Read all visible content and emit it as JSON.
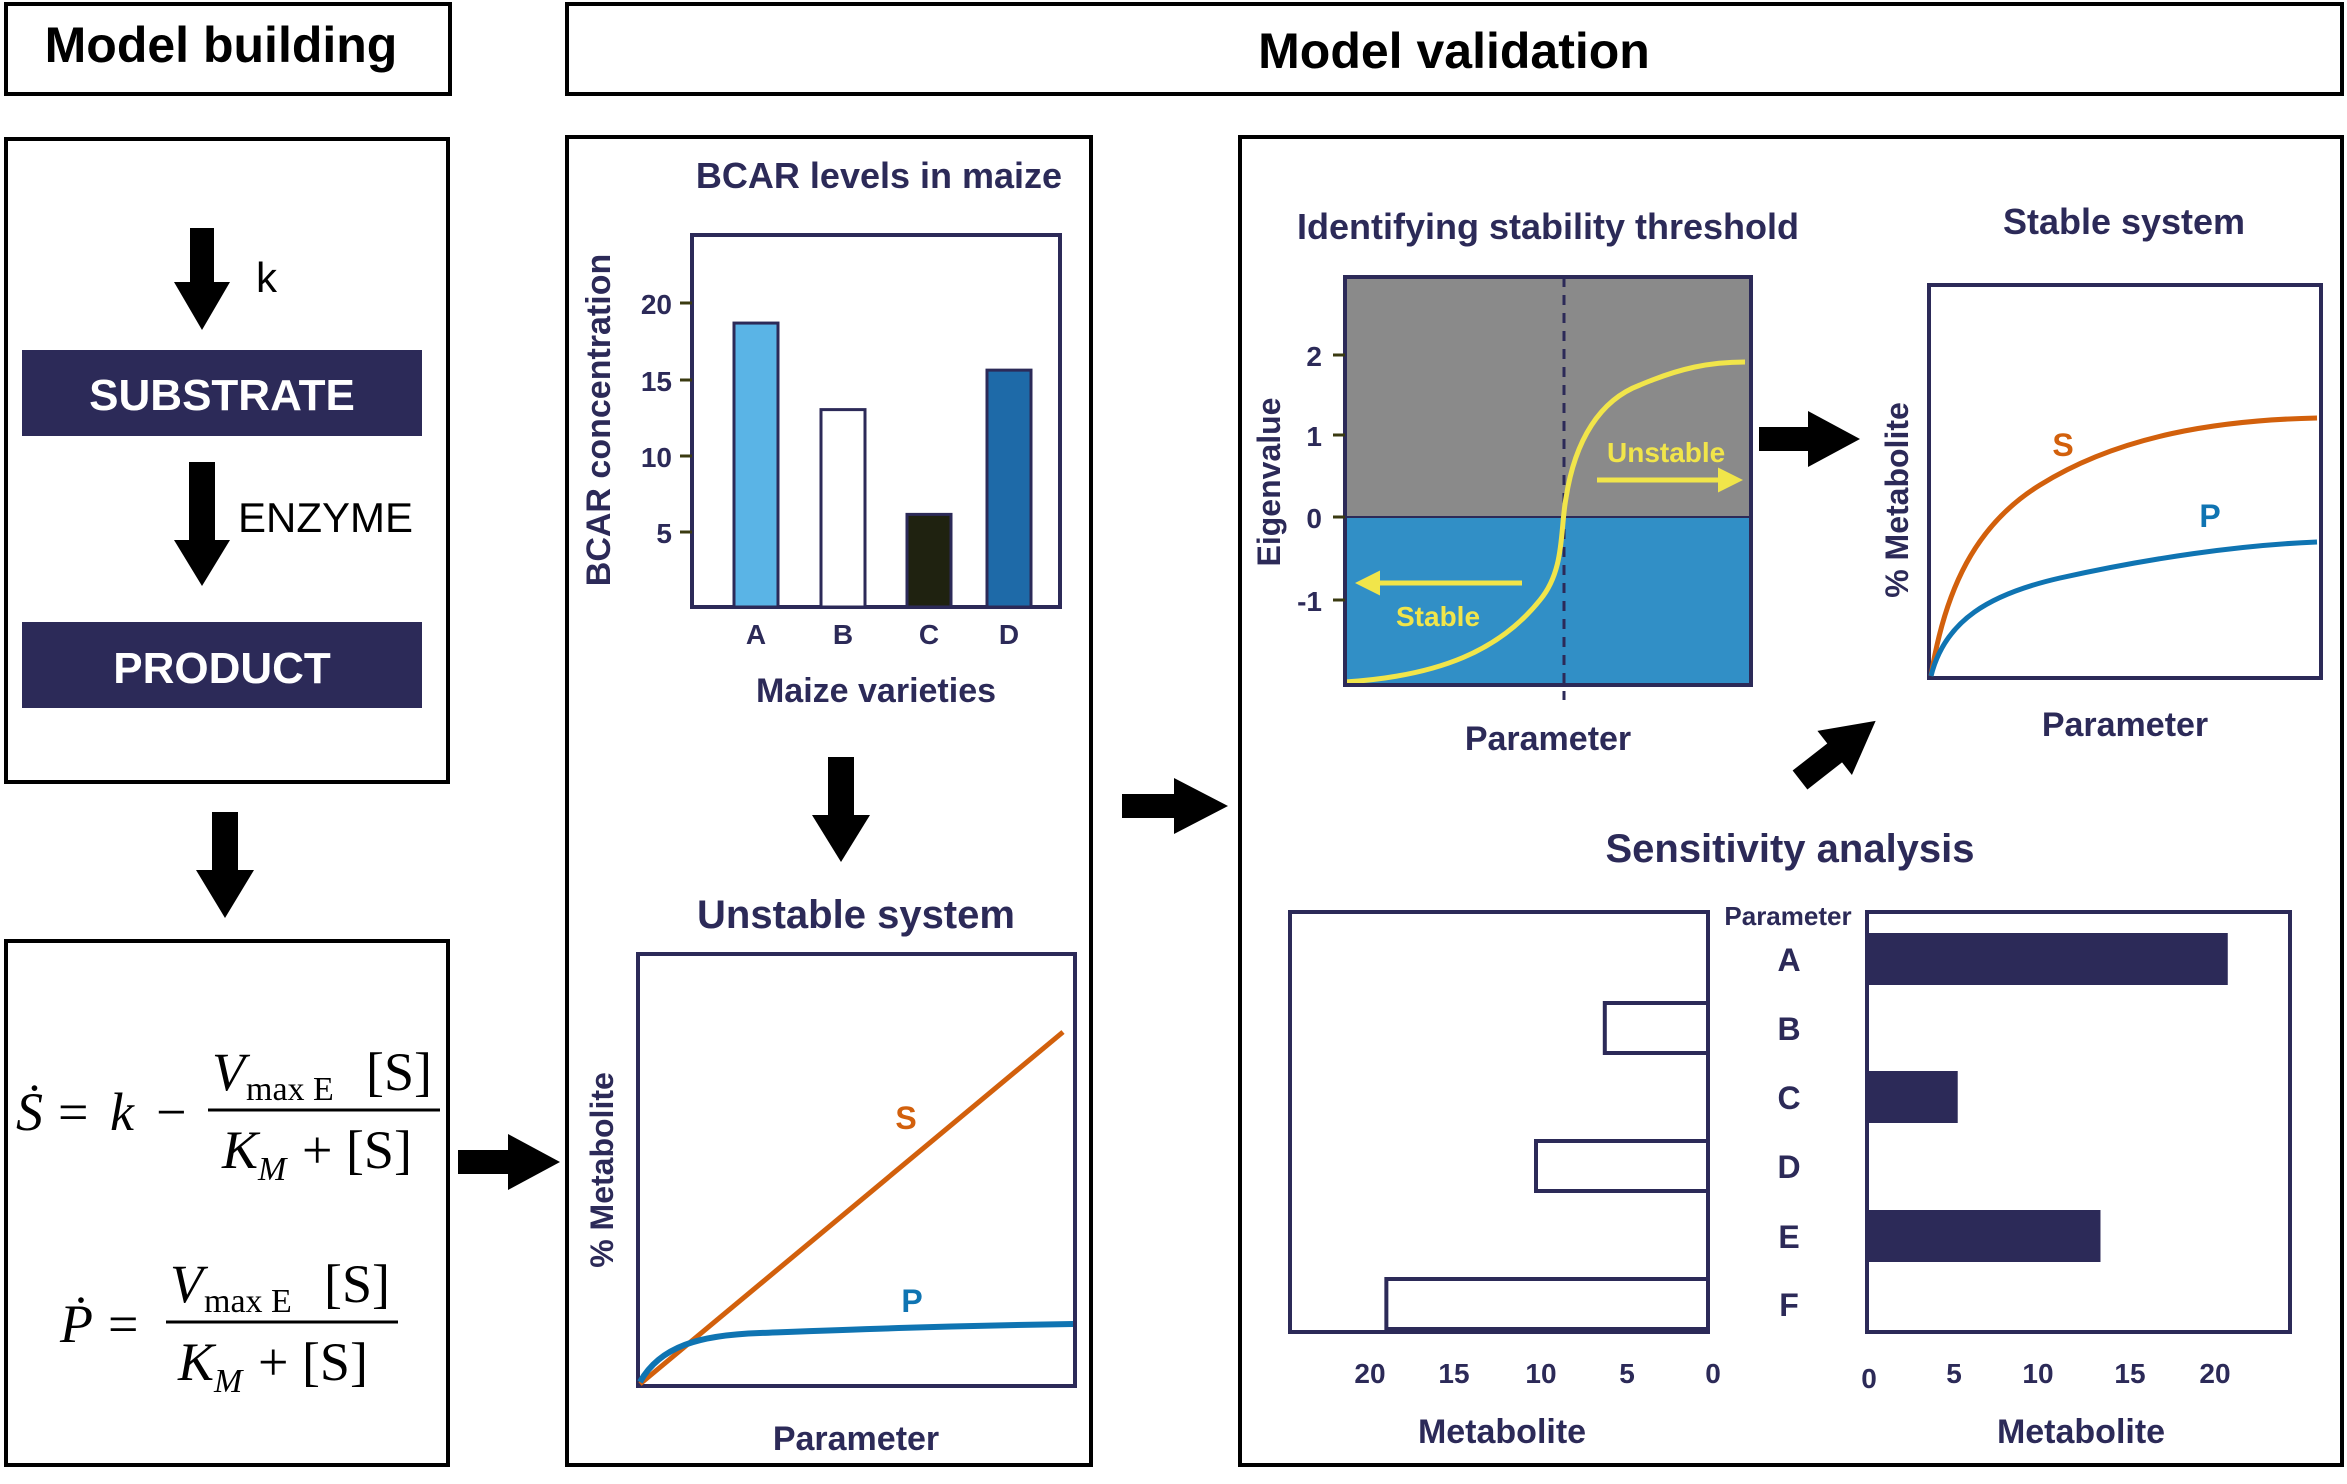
{
  "headers": {
    "model_building": "Model building",
    "model_validation": "Model validation"
  },
  "colors": {
    "navy": "#2c2a58",
    "orange": "#d2600c",
    "blue": "#0f74b2",
    "yellow": "#f1e54a",
    "gray": "#8a8a8a",
    "stable_blue": "#318fc6",
    "bar_light_blue": "#5ab4e6",
    "bar_dark": "#1f2210",
    "bar_dark_blue": "#1e6aa8"
  },
  "reaction": {
    "k_label": "k",
    "substrate": "SUBSTRATE",
    "enzyme_label": "ENZYME",
    "product": "PRODUCT"
  },
  "equations": {
    "s_dot": "Ṡ",
    "p_dot": "Ṗ",
    "equals": "=",
    "k": "k",
    "minus": "−",
    "numerator": "V",
    "numerator_sub": "max E",
    "numerator_tail": "[S]",
    "denominator": "K",
    "denominator_sub": "M",
    "denominator_tail": "+ [S]"
  },
  "bcar": {
    "title": "BCAR levels in maize",
    "ylabel": "BCAR concentration",
    "xlabel": "Maize varieties",
    "yticks": [
      "20",
      "15",
      "10",
      "5"
    ]
  },
  "unstable": {
    "title": "Unstable system",
    "ylabel": "% Metabolite",
    "xlabel": "Parameter",
    "s_label": "S",
    "p_label": "P"
  },
  "stability": {
    "title": "Identifying stability threshold",
    "ylabel": "Eigenvalue",
    "xlabel": "Parameter",
    "unstable_label": "Unstable",
    "stable_label": "Stable",
    "yticks": [
      "2",
      "1",
      "0",
      "-1"
    ]
  },
  "stable": {
    "title": "Stable system",
    "ylabel": "% Metabolite",
    "xlabel": "Parameter",
    "s_label": "S",
    "p_label": "P"
  },
  "sensitivity": {
    "title": "Sensitivity analysis",
    "param_header": "Parameter",
    "left_xlabel": "Metabolite",
    "right_xlabel": "Metabolite",
    "left_ticks": [
      "20",
      "15",
      "10",
      "5",
      "0"
    ],
    "right_ticks": [
      "0",
      "5",
      "10",
      "15",
      "20"
    ]
  },
  "chart_data": [
    {
      "type": "bar",
      "title": "BCAR levels in maize",
      "xlabel": "Maize varieties",
      "ylabel": "BCAR concentration",
      "categories": [
        "A",
        "B",
        "C",
        "D"
      ],
      "values": [
        18.7,
        13.0,
        6.1,
        15.6
      ],
      "ylim": [
        0,
        24.5
      ]
    },
    {
      "type": "line",
      "title": "Identifying stability threshold",
      "xlabel": "Parameter",
      "ylabel": "Eigenvalue",
      "ylim": [
        -2,
        2.5
      ],
      "series": [
        {
          "x": [
            0,
            0.2,
            0.4,
            0.5,
            0.54,
            0.58,
            0.7,
            0.85,
            1.0
          ],
          "y": [
            -1.95,
            -1.8,
            -1.3,
            -0.7,
            0,
            0.8,
            1.45,
            1.75,
            1.85
          ]
        }
      ]
    },
    {
      "type": "line",
      "title": "Unstable system",
      "xlabel": "Parameter",
      "ylabel": "% Metabolite",
      "series": [
        {
          "name": "S",
          "x": [
            0,
            1
          ],
          "y": [
            0,
            0.86
          ]
        },
        {
          "name": "P",
          "x": [
            0,
            0.05,
            0.2,
            0.4,
            0.6,
            0.8,
            1.0
          ],
          "y": [
            0,
            0.05,
            0.1,
            0.125,
            0.138,
            0.144,
            0.145
          ]
        }
      ]
    },
    {
      "type": "line",
      "title": "Stable system",
      "xlabel": "Parameter",
      "ylabel": "% Metabolite",
      "series": [
        {
          "name": "S",
          "x": [
            0,
            0.05,
            0.2,
            0.4,
            0.6,
            0.8,
            1.0
          ],
          "y": [
            0,
            0.3,
            0.55,
            0.7,
            0.77,
            0.8,
            0.81
          ]
        },
        {
          "name": "P",
          "x": [
            0,
            0.05,
            0.2,
            0.4,
            0.6,
            0.8,
            1.0
          ],
          "y": [
            0,
            0.12,
            0.25,
            0.32,
            0.35,
            0.37,
            0.38
          ]
        }
      ]
    },
    {
      "type": "bar",
      "title": "Sensitivity analysis",
      "orientation": "horizontal",
      "categories": [
        "A",
        "B",
        "C",
        "D",
        "E",
        "F"
      ],
      "series": [
        {
          "values": [
            0,
            6,
            0,
            10,
            0,
            18.7
          ]
        },
        {
          "values": [
            20.8,
            0,
            5.1,
            0,
            13.4,
            0
          ]
        }
      ],
      "xlim": [
        0,
        24
      ]
    }
  ]
}
